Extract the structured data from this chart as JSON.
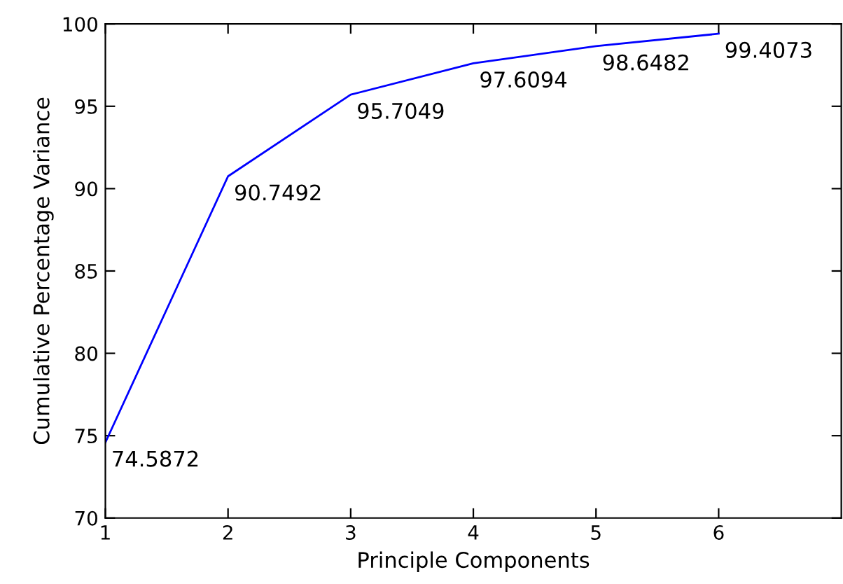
{
  "chart_data": {
    "type": "line",
    "xlabel": "Principle Components",
    "ylabel": "Cumulative Percentage Variance",
    "x": [
      1,
      2,
      3,
      4,
      5,
      6
    ],
    "series": [
      {
        "color": "#0000ff",
        "values": [
          74.5872,
          90.7492,
          95.7049,
          97.6094,
          98.6482,
          99.4073
        ]
      }
    ],
    "data_labels": true,
    "xlim": [
      1,
      7
    ],
    "xticks": [
      1,
      2,
      3,
      4,
      5,
      6
    ],
    "ylim": [
      70,
      100
    ],
    "yticks": [
      70,
      75,
      80,
      85,
      90,
      95,
      100
    ],
    "grid": false,
    "marker": "none",
    "line_style": "solid"
  }
}
